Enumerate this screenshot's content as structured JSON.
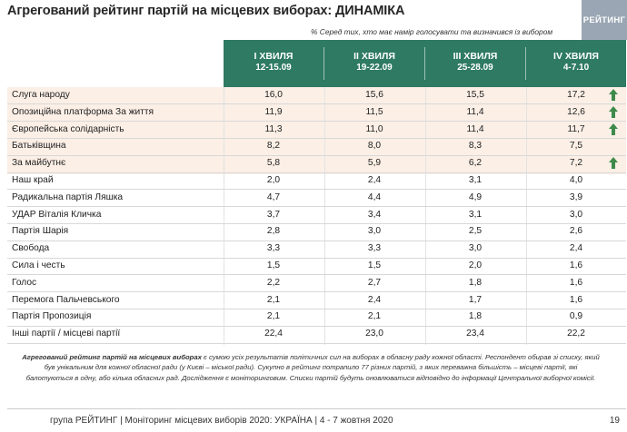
{
  "title": "Агрегований рейтинг партій на місцевих виборах: ДИНАМІКА",
  "logo_text": "РЕЙТИНГ",
  "note": "% Серед тих, хто має намір голосувати та визначився із вибором",
  "waves": [
    {
      "name": "І ХВИЛЯ",
      "dates": "12-15.09"
    },
    {
      "name": "ІІ ХВИЛЯ",
      "dates": "19-22.09"
    },
    {
      "name": "ІІІ ХВИЛЯ",
      "dates": "25-28.09"
    },
    {
      "name": "IV ХВИЛЯ",
      "dates": "4-7.10"
    }
  ],
  "rows": [
    {
      "party": "Слуга народу",
      "values": [
        "16,0",
        "15,6",
        "15,5",
        "17,2"
      ],
      "trend": "up"
    },
    {
      "party": "Опозиційна платформа За життя",
      "values": [
        "11,9",
        "11,5",
        "11,4",
        "12,6"
      ],
      "trend": "up"
    },
    {
      "party": "Європейська солідарність",
      "values": [
        "11,3",
        "11,0",
        "11,4",
        "11,7"
      ],
      "trend": "up"
    },
    {
      "party": "Батьківщина",
      "values": [
        "8,2",
        "8,0",
        "8,3",
        "7,5"
      ],
      "trend": ""
    },
    {
      "party": "За майбутнє",
      "values": [
        "5,8",
        "5,9",
        "6,2",
        "7,2"
      ],
      "trend": "up"
    },
    {
      "party": "Наш край",
      "values": [
        "2,0",
        "2,4",
        "3,1",
        "4,0"
      ],
      "trend": ""
    },
    {
      "party": "Радикальна партія Ляшка",
      "values": [
        "4,7",
        "4,4",
        "4,9",
        "3,9"
      ],
      "trend": ""
    },
    {
      "party": "УДАР Віталія Кличка",
      "values": [
        "3,7",
        "3,4",
        "3,1",
        "3,0"
      ],
      "trend": ""
    },
    {
      "party": "Партія Шарія",
      "values": [
        "2,8",
        "3,0",
        "2,5",
        "2,6"
      ],
      "trend": ""
    },
    {
      "party": "Свобода",
      "values": [
        "3,3",
        "3,3",
        "3,0",
        "2,4"
      ],
      "trend": ""
    },
    {
      "party": "Сила і честь",
      "values": [
        "1,5",
        "1,5",
        "2,0",
        "1,6"
      ],
      "trend": ""
    },
    {
      "party": "Голос",
      "values": [
        "2,2",
        "2,7",
        "1,8",
        "1,6"
      ],
      "trend": ""
    },
    {
      "party": "Перемога Пальчевського",
      "values": [
        "2,1",
        "2,4",
        "1,7",
        "1,6"
      ],
      "trend": ""
    },
    {
      "party": "Партія Пропозиція",
      "values": [
        "2,1",
        "2,1",
        "1,8",
        "0,9"
      ],
      "trend": ""
    },
    {
      "party": "Інші партії / місцеві партії",
      "values": [
        "22,4",
        "23,0",
        "23,4",
        "22,2"
      ],
      "trend": ""
    }
  ],
  "footnote": {
    "bold": "Агрегований рейтинг партій на місцевих виборах",
    "text": " є сумою усіх результатів політичних сил на виборах в обласну раду кожної області. Респондент обирав зі списку, який був унікальним для кожної обласної ради (у Києві – міської ради). Сукупно в рейтинг потрапило 77 різних партій, з яких переважна більшість – місцеві партії, які балотуються в одну, або кілька обласних рад. Дослідження є моніторинговим. Списки партій будуть оновлюватися відповідно до інформації Центральної виборчої комісії."
  },
  "footer": "група РЕЙТИНГ | Моніторинг місцевих виборів 2020: УКРАЇНА | 4 - 7 жовтня 2020",
  "page_number": "19",
  "colors": {
    "header_green": "#2e7a63",
    "highlight": "#fbefe6",
    "arrow_green": "#3f8a4a",
    "logo_grey": "#9aa6b3"
  }
}
